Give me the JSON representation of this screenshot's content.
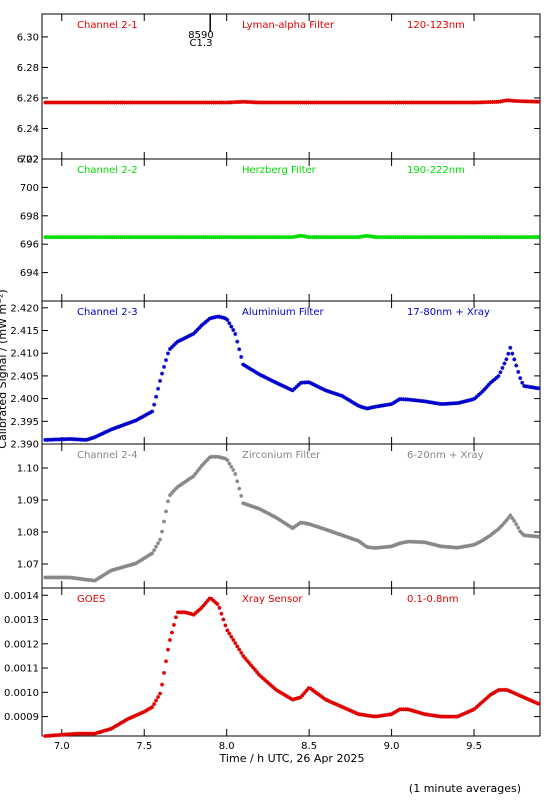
{
  "figure": {
    "ylabel": "Calibrated Signal / (mW m⁻²)",
    "xlabel": "Time / h UTC, 26 Apr 2025",
    "footnote": "(1 minute averages)",
    "marker": {
      "top": "8590",
      "bottom": "C1.3",
      "x": 7.9
    }
  },
  "chart_data": [
    {
      "type": "scatter",
      "labels": [
        "Channel 2-1",
        "Lyman-alpha Filter",
        "120-123nm"
      ],
      "color": "#e00000",
      "marker": "asterisk",
      "xlim": [
        6.88,
        9.9
      ],
      "ylim": [
        6.22,
        6.315
      ],
      "yticks": [
        "6.22",
        "6.24",
        "6.26",
        "6.28",
        "6.30"
      ],
      "x": [
        6.9,
        7.2,
        7.5,
        8.0,
        8.1,
        8.2,
        8.5,
        9.0,
        9.5,
        9.65,
        9.7,
        9.75,
        9.9
      ],
      "y": [
        6.257,
        6.257,
        6.257,
        6.257,
        6.2575,
        6.257,
        6.257,
        6.257,
        6.257,
        6.2575,
        6.2585,
        6.258,
        6.2575
      ]
    },
    {
      "type": "scatter",
      "labels": [
        "Channel 2-2",
        "Herzberg Filter",
        "190-222nm"
      ],
      "color": "#00dd00",
      "marker": "asterisk",
      "xlim": [
        6.88,
        9.9
      ],
      "ylim": [
        692.0,
        702.0
      ],
      "yticks": [
        "694",
        "696",
        "698",
        "700",
        "702"
      ],
      "x": [
        6.9,
        7.2,
        7.5,
        8.0,
        8.4,
        8.45,
        8.5,
        8.8,
        8.85,
        8.9,
        9.5,
        9.9
      ],
      "y": [
        696.5,
        696.5,
        696.5,
        696.5,
        696.5,
        696.6,
        696.5,
        696.5,
        696.6,
        696.5,
        696.5,
        696.5
      ]
    },
    {
      "type": "scatter",
      "labels": [
        "Channel 2-3",
        "Aluminium Filter",
        "17-80nm + Xray"
      ],
      "color": "#0000cc",
      "marker": "asterisk",
      "xlim": [
        6.88,
        9.9
      ],
      "ylim": [
        2.39,
        2.4215
      ],
      "yticks": [
        "2.390",
        "2.395",
        "2.400",
        "2.405",
        "2.410",
        "2.415",
        "2.420"
      ],
      "x": [
        6.9,
        7.05,
        7.15,
        7.2,
        7.3,
        7.45,
        7.55,
        7.6,
        7.65,
        7.7,
        7.8,
        7.85,
        7.9,
        7.95,
        8.0,
        8.05,
        8.1,
        8.2,
        8.3,
        8.4,
        8.45,
        8.5,
        8.6,
        8.7,
        8.8,
        8.85,
        8.9,
        9.0,
        9.05,
        9.1,
        9.2,
        9.3,
        9.4,
        9.5,
        9.55,
        9.6,
        9.65,
        9.7,
        9.72,
        9.75,
        9.78,
        9.8,
        9.9
      ],
      "y": [
        2.3909,
        2.3911,
        2.3909,
        2.3915,
        2.3932,
        2.3952,
        2.3972,
        2.4045,
        2.4107,
        2.4125,
        2.4143,
        2.4162,
        2.4177,
        2.4181,
        2.4176,
        2.4145,
        2.4075,
        2.4053,
        2.4035,
        2.4018,
        2.4035,
        2.4036,
        2.4018,
        2.4006,
        2.3984,
        2.3978,
        2.3982,
        2.3988,
        2.3999,
        2.3998,
        2.3994,
        2.3988,
        2.399,
        2.3999,
        2.4015,
        2.4035,
        2.405,
        2.409,
        2.4112,
        2.408,
        2.4045,
        2.4028,
        2.4022
      ]
    },
    {
      "type": "scatter",
      "labels": [
        "Channel 2-4",
        "Zirconium Filter",
        "6-20nm + Xray"
      ],
      "color": "#888888",
      "marker": "asterisk",
      "xlim": [
        6.88,
        9.9
      ],
      "ylim": [
        1.0625,
        1.1075
      ],
      "yticks": [
        "1.07",
        "1.08",
        "1.09",
        "1.10"
      ],
      "x": [
        6.9,
        7.05,
        7.15,
        7.2,
        7.3,
        7.45,
        7.55,
        7.6,
        7.65,
        7.7,
        7.8,
        7.85,
        7.9,
        7.95,
        8.0,
        8.05,
        8.1,
        8.2,
        8.3,
        8.4,
        8.45,
        8.5,
        8.6,
        8.7,
        8.8,
        8.85,
        8.9,
        9.0,
        9.05,
        9.1,
        9.2,
        9.3,
        9.4,
        9.5,
        9.55,
        9.6,
        9.65,
        9.7,
        9.72,
        9.75,
        9.78,
        9.8,
        9.9
      ],
      "y": [
        1.0658,
        1.0658,
        1.0651,
        1.0648,
        1.068,
        1.0702,
        1.0734,
        1.078,
        1.0912,
        1.094,
        1.0975,
        1.1008,
        1.1035,
        1.1035,
        1.1028,
        1.0985,
        1.089,
        1.0872,
        1.0845,
        1.0812,
        1.083,
        1.0825,
        1.0808,
        1.079,
        1.0772,
        1.0753,
        1.075,
        1.0755,
        1.0765,
        1.077,
        1.0768,
        1.0755,
        1.0751,
        1.076,
        1.0773,
        1.079,
        1.081,
        1.0838,
        1.0852,
        1.083,
        1.0802,
        1.079,
        1.0785
      ]
    },
    {
      "type": "scatter",
      "labels": [
        "GOES",
        "Xray Sensor",
        "0.1-0.8nm"
      ],
      "color": "#e00000",
      "marker": "asterisk",
      "xlim": [
        6.88,
        9.9
      ],
      "ylim": [
        0.00082,
        0.00143
      ],
      "yticks": [
        "0.0009",
        "0.0010",
        "0.0011",
        "0.0012",
        "0.0013",
        "0.0014"
      ],
      "x": [
        6.9,
        7.1,
        7.2,
        7.3,
        7.4,
        7.5,
        7.55,
        7.6,
        7.65,
        7.7,
        7.75,
        7.8,
        7.85,
        7.9,
        7.95,
        8.0,
        8.1,
        8.2,
        8.3,
        8.4,
        8.45,
        8.5,
        8.6,
        8.7,
        8.8,
        8.9,
        9.0,
        9.05,
        9.1,
        9.2,
        9.3,
        9.4,
        9.5,
        9.6,
        9.65,
        9.7,
        9.8,
        9.9
      ],
      "y": [
        0.00082,
        0.00083,
        0.00083,
        0.00085,
        0.00089,
        0.00092,
        0.00094,
        0.001,
        0.0012,
        0.00133,
        0.00133,
        0.00132,
        0.00135,
        0.00139,
        0.00136,
        0.00126,
        0.00115,
        0.00107,
        0.00101,
        0.00097,
        0.00098,
        0.00102,
        0.00097,
        0.00094,
        0.00091,
        0.0009,
        0.00091,
        0.00093,
        0.00093,
        0.00091,
        0.0009,
        0.0009,
        0.00093,
        0.00099,
        0.00101,
        0.00101,
        0.00098,
        0.00095
      ]
    }
  ],
  "xaxis": {
    "ticks": [
      7.0,
      7.5,
      8.0,
      8.5,
      9.0,
      9.5
    ],
    "tick_labels": [
      "7.0",
      "7.5",
      "8.0",
      "8.5",
      "9.0",
      "9.5"
    ]
  }
}
